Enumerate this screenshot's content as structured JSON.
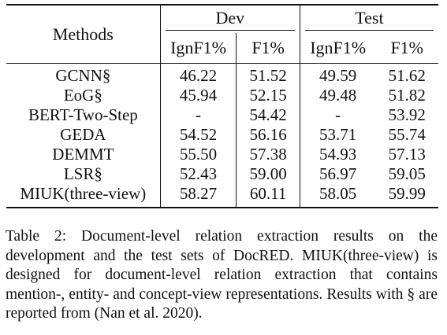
{
  "table": {
    "header": {
      "methods": "Methods",
      "dev": "Dev",
      "test": "Test",
      "ignf1": "IgnF1%",
      "f1": "F1%"
    },
    "rows": [
      {
        "method": "GCNN§",
        "dev_ign": "46.22",
        "dev_f1": "51.52",
        "test_ign": "49.59",
        "test_f1": "51.62"
      },
      {
        "method": "EoG§",
        "dev_ign": "45.94",
        "dev_f1": "52.15",
        "test_ign": "49.48",
        "test_f1": "51.82"
      },
      {
        "method": "BERT-Two-Step",
        "dev_ign": "-",
        "dev_f1": "54.42",
        "test_ign": "-",
        "test_f1": "53.92"
      },
      {
        "method": "GEDA",
        "dev_ign": "54.52",
        "dev_f1": "56.16",
        "test_ign": "53.71",
        "test_f1": "55.74"
      },
      {
        "method": "DEMMT",
        "dev_ign": "55.50",
        "dev_f1": "57.38",
        "test_ign": "54.93",
        "test_f1": "57.13"
      },
      {
        "method": "LSR§",
        "dev_ign": "52.43",
        "dev_f1": "59.00",
        "test_ign": "56.97",
        "test_f1": "59.05"
      },
      {
        "method": "MIUK(three-view)",
        "dev_ign": "58.27",
        "dev_f1": "60.11",
        "test_ign": "58.05",
        "test_f1": "59.99"
      }
    ]
  },
  "caption": {
    "label": "Table 2:",
    "text": "Document-level relation extraction results on the development and the test sets of DocRED. MIUK(three-view) is designed for document-level relation extraction that contains mention-, entity- and concept-view representations. Results with § are reported from (Nan et al. 2020)."
  }
}
